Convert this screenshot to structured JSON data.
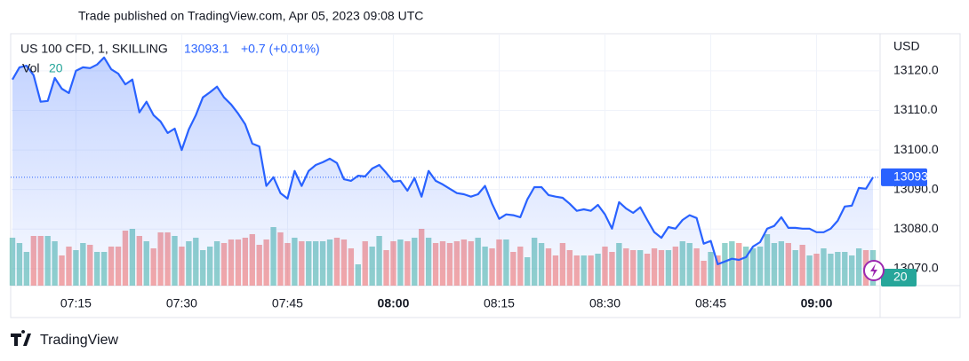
{
  "header": {
    "title": "Trade published on TradingView.com, Apr 05, 2023 09:08 UTC"
  },
  "chart_data": {
    "type": "line",
    "symbol": "US 100 CFD, 1, SKILLING",
    "change": "+0.7 (+0.01%)",
    "currency": "USD",
    "categories": [
      null,
      null,
      null,
      null,
      null,
      null,
      null,
      null,
      null,
      "07:15",
      null,
      null,
      null,
      null,
      null,
      null,
      null,
      null,
      null,
      null,
      null,
      null,
      null,
      null,
      "07:30",
      null,
      null,
      null,
      null,
      null,
      null,
      null,
      null,
      null,
      null,
      null,
      null,
      null,
      null,
      "07:45",
      null,
      null,
      null,
      null,
      null,
      null,
      null,
      null,
      null,
      null,
      null,
      null,
      null,
      null,
      "08:00",
      null,
      null,
      null,
      null,
      null,
      null,
      null,
      null,
      null,
      null,
      null,
      null,
      null,
      null,
      "08:15",
      null,
      null,
      null,
      null,
      null,
      null,
      null,
      null,
      null,
      null,
      null,
      null,
      null,
      null,
      "08:30",
      null,
      null,
      null,
      null,
      null,
      null,
      null,
      null,
      null,
      null,
      null,
      null,
      null,
      null,
      "08:45",
      null,
      null,
      null,
      null,
      null,
      null,
      null,
      null,
      null,
      null,
      null,
      null,
      null,
      null,
      "09:00",
      null,
      null,
      null,
      null,
      null,
      null,
      null,
      null
    ],
    "series": [
      {
        "name": "US 100 CFD",
        "color": "#2962ff",
        "values": [
          13117.8,
          13120.9,
          13121.3,
          13118.9,
          13112.2,
          13112.4,
          13118.2,
          13115.5,
          13114.4,
          13120.0,
          13120.9,
          13120.7,
          13121.6,
          13123.4,
          13120.4,
          13119.3,
          13116.6,
          13117.8,
          13109.5,
          13112.2,
          13108.8,
          13107.2,
          13104.3,
          13105.4,
          13100.0,
          13105.2,
          13108.8,
          13113.3,
          13114.6,
          13116.0,
          13113.3,
          13111.5,
          13109.2,
          13106.5,
          13101.6,
          13100.9,
          13090.9,
          13093.1,
          13089.1,
          13087.7,
          13094.7,
          13090.9,
          13094.7,
          13096.2,
          13096.9,
          13097.8,
          13096.7,
          13092.6,
          13092.2,
          13093.5,
          13093.3,
          13095.3,
          13096.2,
          13094.2,
          13092.0,
          13092.2,
          13089.7,
          13092.9,
          13088.2,
          13094.7,
          13092.2,
          13091.3,
          13090.2,
          13089.1,
          13088.8,
          13088.2,
          13088.8,
          13090.9,
          13086.4,
          13082.6,
          13083.7,
          13083.5,
          13083.0,
          13087.5,
          13090.6,
          13090.6,
          13088.6,
          13088.2,
          13087.9,
          13086.4,
          13084.6,
          13085.0,
          13084.6,
          13086.1,
          13083.7,
          13080.1,
          13086.8,
          13085.2,
          13084.1,
          13085.5,
          13082.3,
          13079.2,
          13077.8,
          13080.5,
          13080.1,
          13082.3,
          13083.5,
          13082.8,
          13076.3,
          13077.0,
          13071.1,
          13071.8,
          13072.5,
          13072.2,
          13072.9,
          13075.6,
          13076.7,
          13080.1,
          13080.8,
          13083.0,
          13080.3,
          13080.3,
          13080.1,
          13080.1,
          13079.2,
          13079.2,
          13080.1,
          13082.1,
          13085.7,
          13085.9,
          13090.4,
          13090.2,
          13093.1
        ]
      },
      {
        "name": "Vol",
        "color": "#26a69a",
        "down_color": "#ef5350",
        "values": [
          27,
          24,
          19,
          28,
          28,
          28,
          25,
          17,
          22,
          20,
          24,
          23,
          19,
          19,
          22,
          22,
          31,
          32,
          28,
          25,
          21,
          30,
          30,
          28,
          22,
          25,
          27,
          20,
          22,
          25,
          24,
          26,
          26,
          27,
          29,
          23,
          26,
          33,
          30,
          24,
          27,
          25,
          25,
          25,
          25,
          26,
          27,
          26,
          21,
          12,
          25,
          22,
          28,
          20,
          25,
          26,
          25,
          27,
          32,
          27,
          24,
          25,
          24,
          25,
          26,
          25,
          27,
          22,
          21,
          26,
          26,
          19,
          22,
          16,
          27,
          24,
          21,
          17,
          24,
          20,
          17,
          17,
          17,
          18,
          22,
          19,
          24,
          21,
          20,
          20,
          18,
          21,
          20,
          20,
          22,
          25,
          24,
          21,
          14,
          19,
          17,
          24,
          25,
          24,
          22,
          21,
          22,
          29,
          24,
          25,
          24,
          20,
          23,
          17,
          18,
          21,
          18,
          19,
          19,
          17,
          21,
          20,
          20
        ],
        "axis": "y2"
      }
    ],
    "ylim": [
      13065.7,
      13129.4
    ],
    "yticks": [
      {
        "value": 13070,
        "label": "13070.0"
      },
      {
        "value": 13080,
        "label": "13080.0"
      },
      {
        "value": 13090,
        "label": "13090.0"
      },
      {
        "value": 13100,
        "label": "13100.0"
      },
      {
        "value": 13110,
        "label": "13110.0"
      },
      {
        "value": 13120,
        "label": "13120.0"
      }
    ],
    "y2lim": [
      0,
      142
    ],
    "grid": true
  },
  "footer": {
    "brand": "TradingView"
  }
}
